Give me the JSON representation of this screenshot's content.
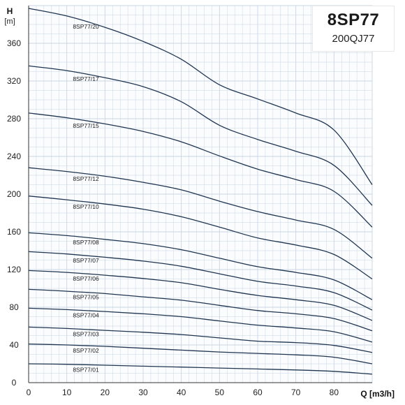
{
  "title_box": {
    "title": "8SP77",
    "subtitle": "200QJ77"
  },
  "chart_data": {
    "type": "line",
    "title": "8SP77",
    "subtitle": "200QJ77",
    "xlabel": "Q [m3/h]",
    "ylabel": "H",
    "yunit": "[m]",
    "xlim": [
      0,
      90
    ],
    "ylim": [
      0,
      400
    ],
    "x_ticks": [
      0,
      10,
      20,
      30,
      40,
      50,
      60,
      70,
      80
    ],
    "y_ticks": [
      0,
      40,
      80,
      120,
      160,
      200,
      240,
      280,
      320,
      360
    ],
    "grid": true,
    "line_color": "#1f3550",
    "grid_color": "#c9d6e3",
    "series": [
      {
        "name": "8SP77/01",
        "x": [
          0,
          10,
          20,
          30,
          40,
          50,
          60,
          70,
          80,
          90
        ],
        "values": [
          20,
          19.5,
          18.5,
          17.5,
          16.5,
          15.5,
          14.5,
          13.5,
          12,
          9
        ]
      },
      {
        "name": "8SP77/02",
        "x": [
          0,
          10,
          20,
          30,
          40,
          50,
          60,
          70,
          80,
          90
        ],
        "values": [
          41,
          40,
          38.5,
          36.5,
          34.5,
          32.5,
          31,
          29.5,
          27,
          20
        ]
      },
      {
        "name": "8SP77/03",
        "x": [
          0,
          10,
          20,
          30,
          40,
          50,
          60,
          70,
          80,
          90
        ],
        "values": [
          59,
          57.5,
          55.5,
          53.5,
          51,
          47.5,
          44,
          42.5,
          39.5,
          32
        ]
      },
      {
        "name": "8SP77/04",
        "x": [
          0,
          10,
          20,
          30,
          40,
          50,
          60,
          70,
          80,
          90
        ],
        "values": [
          79,
          77.5,
          75.5,
          73,
          70,
          65.5,
          61,
          58,
          54,
          43
        ]
      },
      {
        "name": "8SP77/05",
        "x": [
          0,
          10,
          20,
          30,
          40,
          50,
          60,
          70,
          80,
          90
        ],
        "values": [
          99,
          97,
          94.5,
          91,
          87.5,
          82,
          76.5,
          73,
          68,
          55
        ]
      },
      {
        "name": "8SP77/06",
        "x": [
          0,
          10,
          20,
          30,
          40,
          50,
          60,
          70,
          80,
          90
        ],
        "values": [
          119,
          117,
          114,
          110.5,
          106,
          99,
          92.5,
          88,
          82,
          66
        ]
      },
      {
        "name": "8SP77/07",
        "x": [
          0,
          10,
          20,
          30,
          40,
          50,
          60,
          70,
          80,
          90
        ],
        "values": [
          139,
          136.5,
          133,
          129,
          123.5,
          115.5,
          107.5,
          102.5,
          95.5,
          77
        ]
      },
      {
        "name": "8SP77/08",
        "x": [
          0,
          10,
          20,
          30,
          40,
          50,
          60,
          70,
          80,
          90
        ],
        "values": [
          159,
          156,
          152,
          147.5,
          141,
          132,
          123,
          117,
          109,
          88
        ]
      },
      {
        "name": "8SP77/10",
        "x": [
          0,
          10,
          20,
          30,
          40,
          50,
          60,
          70,
          80,
          90
        ],
        "values": [
          198,
          194,
          189.5,
          184,
          176,
          165,
          153.5,
          146,
          136,
          110
        ]
      },
      {
        "name": "8SP77/12",
        "x": [
          0,
          10,
          20,
          30,
          40,
          50,
          60,
          70,
          80,
          90
        ],
        "values": [
          228,
          224,
          219,
          212.5,
          204.5,
          192.5,
          181.5,
          172.5,
          162.5,
          132
        ]
      },
      {
        "name": "8SP77/15",
        "x": [
          0,
          10,
          20,
          30,
          40,
          50,
          60,
          70,
          80,
          90
        ],
        "values": [
          286,
          281,
          274.5,
          266.5,
          255.5,
          240.5,
          226.5,
          215.5,
          203,
          165
        ]
      },
      {
        "name": "8SP77/17",
        "x": [
          0,
          10,
          20,
          30,
          40,
          50,
          60,
          70,
          80,
          90
        ],
        "values": [
          336,
          331,
          323.5,
          314,
          298,
          273,
          258,
          245.5,
          230.5,
          188
        ]
      },
      {
        "name": "8SP77/20",
        "x": [
          0,
          10,
          20,
          30,
          40,
          50,
          60,
          70,
          80,
          90
        ],
        "values": [
          397,
          389,
          377,
          362,
          343,
          316,
          301,
          286,
          268,
          210
        ]
      }
    ]
  }
}
